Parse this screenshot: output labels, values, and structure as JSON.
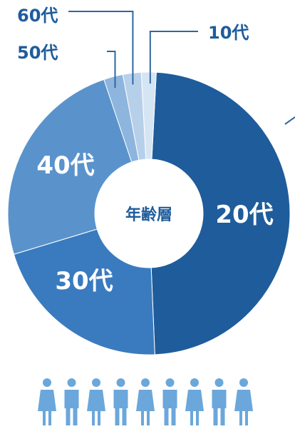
{
  "chart_data": {
    "type": "pie",
    "style": "donut",
    "center_label": "年齢層",
    "slices": [
      {
        "label": "20代",
        "value": 48.5,
        "color": "#1f5c9b",
        "label_position": "inside"
      },
      {
        "label": "30代",
        "value": 21.0,
        "color": "#3a7bbf",
        "label_position": "inside"
      },
      {
        "label": "40代",
        "value": 24.5,
        "color": "#5a93cc",
        "label_position": "inside"
      },
      {
        "label": "50代",
        "value": 2.2,
        "color": "#8db5de",
        "label_position": "outside"
      },
      {
        "label": "60代",
        "value": 2.1,
        "color": "#b7d0ea",
        "label_position": "outside"
      },
      {
        "label": "10代",
        "value": 1.7,
        "color": "#d6e5f3",
        "label_position": "outside"
      }
    ],
    "start_angle_deg": 3,
    "direction": "clockwise"
  },
  "colors": {
    "label_text_dark": "#1f5c9b",
    "label_text_light": "#ffffff",
    "leader_line": "#2f67a4",
    "people_icons": "#6ba7db"
  },
  "people_row": {
    "count": 9,
    "icon": "person-icon"
  }
}
